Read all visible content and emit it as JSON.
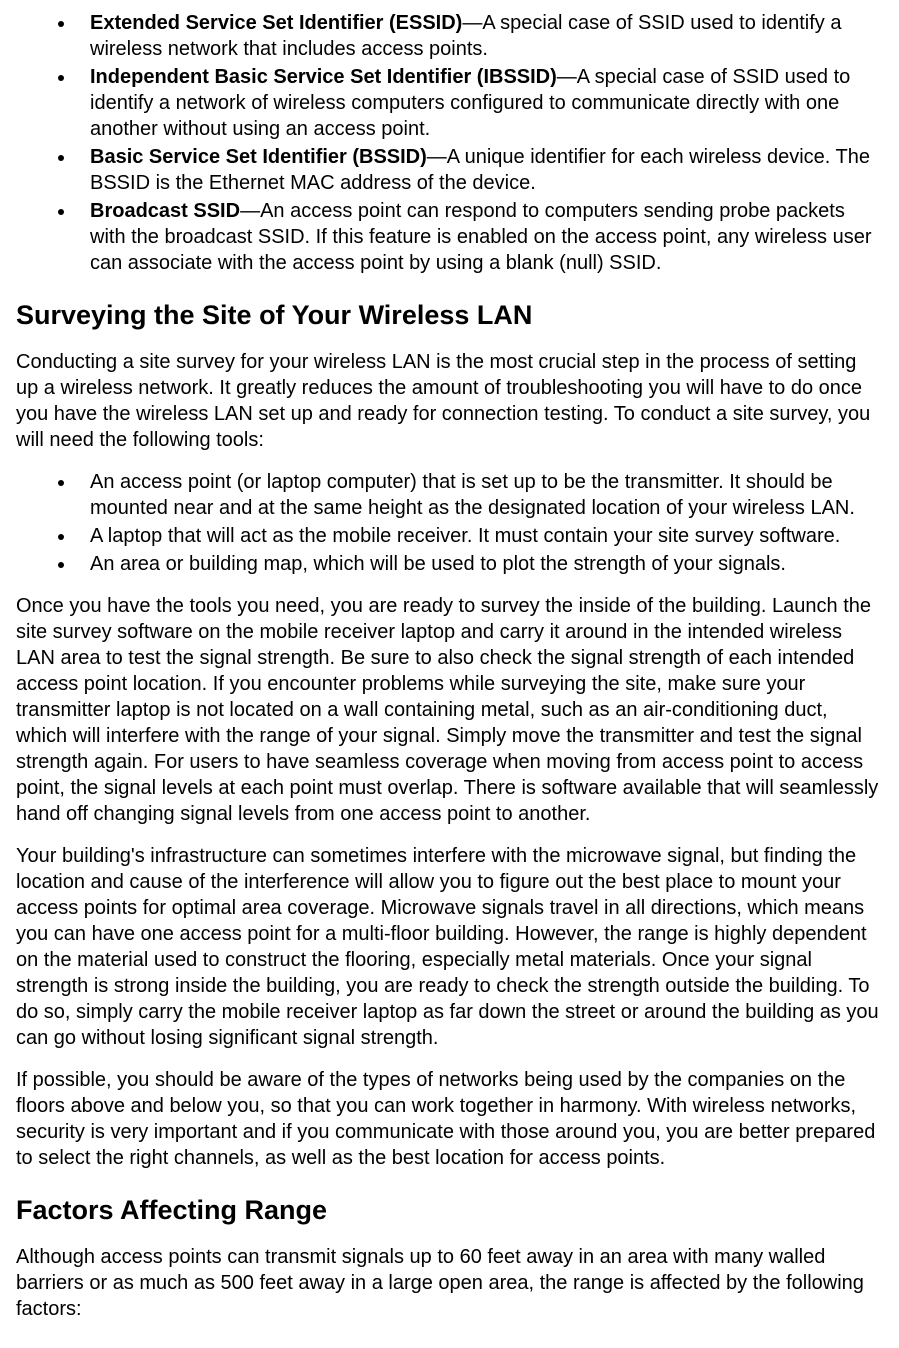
{
  "ssid_list": [
    {
      "term": "Extended Service Set Identifier (ESSID)",
      "desc": "—A special case of SSID used to identify a wireless network that includes access points."
    },
    {
      "term": "Independent Basic Service Set Identifier (IBSSID)",
      "desc": "—A special case of SSID used to identify a network of wireless computers configured to communicate directly with one another without using an access point."
    },
    {
      "term": "Basic Service Set Identifier (BSSID)",
      "desc": "—A unique identifier for each wireless device. The BSSID is the Ethernet MAC address of the device."
    },
    {
      "term": "Broadcast SSID",
      "desc": "—An access point can respond to computers sending probe packets with the broadcast SSID. If this feature is enabled on the access point, any wireless user can associate with the access point by using a blank (null) SSID."
    }
  ],
  "heading_survey": "Surveying the Site of Your Wireless LAN",
  "survey_intro": "Conducting a site survey for your wireless LAN is the most crucial step in the process of setting up a wireless network. It greatly reduces the amount of troubleshooting you will have to do once you have the wireless LAN set up and ready for connection testing. To conduct a site survey, you will need the following tools:",
  "tools_list": [
    "An access point (or laptop computer) that is set up to be the transmitter. It should be mounted near and at the same height as the designated location of your wireless LAN.",
    "A laptop that will act as the mobile receiver. It must contain your site survey software.",
    "An area or building map, which will be used to plot the strength of your signals."
  ],
  "survey_p1": "Once you have the tools you need, you are ready to survey the inside of the building. Launch the site survey software on the mobile receiver laptop and carry it around in the intended wireless LAN area to test the signal strength. Be sure to also check the signal strength of each intended access point location. If you encounter problems while surveying the site, make sure your transmitter laptop is not located on a wall containing metal, such as an air-conditioning duct, which will interfere with the range of your signal. Simply move the transmitter and test the signal strength again. For users to have seamless coverage when moving from access point to access point, the signal levels at each point must overlap. There is software available that will seamlessly hand off changing signal levels from one access point to another.",
  "survey_p2": "Your building's infrastructure can sometimes interfere with the microwave signal, but finding the location and cause of the interference will allow you to figure out the best place to mount your access points for optimal area coverage. Microwave signals travel in all directions, which means you can have one access point for a multi-floor building. However, the range is highly dependent on the material used to construct the flooring, especially metal materials. Once your signal strength is strong inside the building, you are ready to check the strength outside the building. To do so, simply carry the mobile receiver laptop as far down the street or around the building as you can go without losing significant signal strength.",
  "survey_p3": "If possible, you should be aware of the types of networks being used by the companies on the floors above and below you, so that you can work together in harmony. With wireless networks, security is very important and if you communicate with those around you, you are better prepared to select the right channels, as well as the best location for access points.",
  "heading_factors": "Factors Affecting Range",
  "factors_intro": "Although access points can transmit signals up to 60 feet away in an area with many walled barriers or as much as 500 feet away in a large open area, the  range is affected by the following factors:"
}
